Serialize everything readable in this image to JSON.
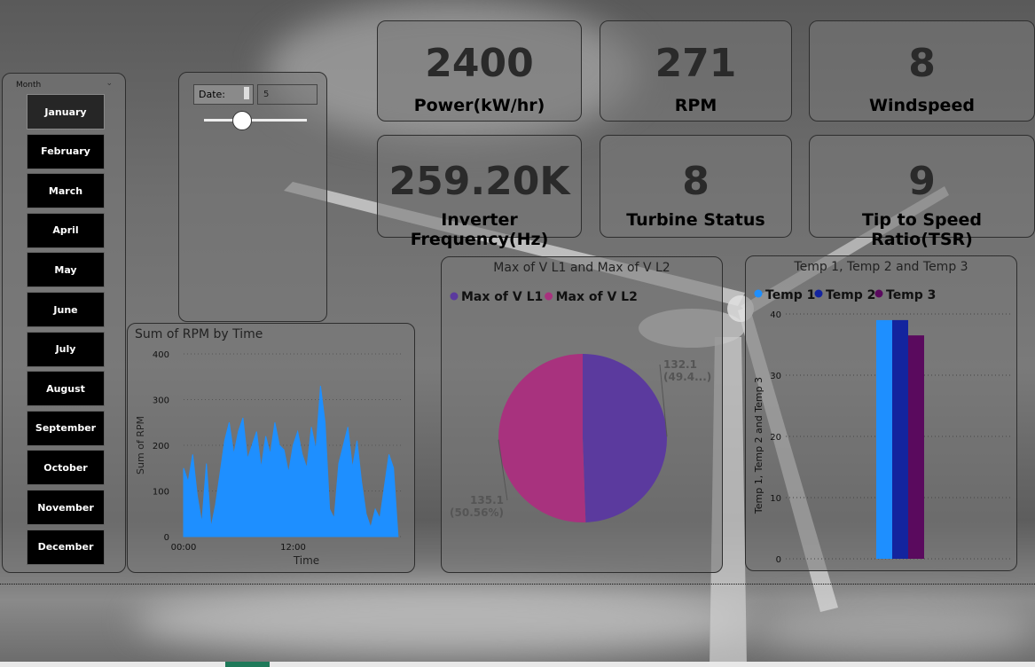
{
  "month_slicer": {
    "header": "Month",
    "selected": "January",
    "months": [
      "January",
      "February",
      "March",
      "April",
      "May",
      "June",
      "July",
      "August",
      "September",
      "October",
      "November",
      "December"
    ]
  },
  "date_slicer": {
    "label": "Date:",
    "value": "5"
  },
  "kpis": [
    {
      "value": "2400",
      "label": "Power(kW/hr)"
    },
    {
      "value": "271",
      "label": "RPM"
    },
    {
      "value": "8",
      "label": "Windspeed"
    },
    {
      "value": "259.20K",
      "label": "Inverter Frequency(Hz)"
    },
    {
      "value": "8",
      "label": "Turbine Status"
    },
    {
      "value": "9",
      "label": "Tip to Speed Ratio(TSR)"
    }
  ],
  "colors": {
    "rpm_series": "#1e8fff",
    "vl1": "#5b3a9e",
    "vl2": "#a8327e",
    "temp1": "#1e8fff",
    "temp2": "#13249e",
    "temp3": "#5a0a5e"
  },
  "chart_data": [
    {
      "type": "area",
      "title": "Sum of RPM by Time",
      "xlabel": "Time",
      "ylabel": "Sum of RPM",
      "ylim": [
        0,
        400
      ],
      "yticks": [
        0,
        100,
        200,
        300,
        400
      ],
      "xticks": [
        "00:00",
        "12:00"
      ],
      "grid": true,
      "x_hours": [
        0,
        0.5,
        1,
        1.5,
        2,
        2.5,
        3,
        3.5,
        4,
        4.5,
        5,
        5.5,
        6,
        6.5,
        7,
        7.5,
        8,
        8.5,
        9,
        9.5,
        10,
        10.5,
        11,
        11.5,
        12,
        12.5,
        13,
        13.5,
        14,
        14.5,
        15,
        15.5,
        16,
        16.5,
        17,
        17.5,
        18,
        18.5,
        19,
        19.5,
        20,
        20.5,
        21,
        21.5,
        22,
        22.5,
        23,
        23.5
      ],
      "values": [
        150,
        120,
        180,
        90,
        30,
        160,
        20,
        70,
        140,
        210,
        250,
        180,
        230,
        260,
        170,
        200,
        230,
        150,
        220,
        180,
        250,
        200,
        190,
        140,
        200,
        230,
        180,
        150,
        240,
        190,
        330,
        250,
        60,
        40,
        160,
        200,
        240,
        150,
        210,
        120,
        50,
        20,
        60,
        40,
        110,
        180,
        150,
        0
      ]
    },
    {
      "type": "pie",
      "title": "Max of V L1 and Max of V L2",
      "legend_position": "top-left",
      "slices": [
        {
          "name": "Max of V L1",
          "value": 132.1,
          "label_value": "132.1",
          "label_pct": "(49.4...)"
        },
        {
          "name": "Max of V L2",
          "value": 135.1,
          "label_value": "135.1",
          "label_pct": "(50.56%)"
        }
      ]
    },
    {
      "type": "bar",
      "title": "Temp 1, Temp 2 and Temp 3",
      "ylabel": "Temp 1, Temp 2 and Temp 3",
      "xlabel": "",
      "ylim": [
        0,
        40
      ],
      "yticks": [
        0,
        10,
        20,
        30,
        40
      ],
      "legend_position": "top-left",
      "series": [
        {
          "name": "Temp 1",
          "values": [
            39
          ]
        },
        {
          "name": "Temp 2",
          "values": [
            39
          ]
        },
        {
          "name": "Temp 3",
          "values": [
            36.5
          ]
        }
      ]
    }
  ]
}
